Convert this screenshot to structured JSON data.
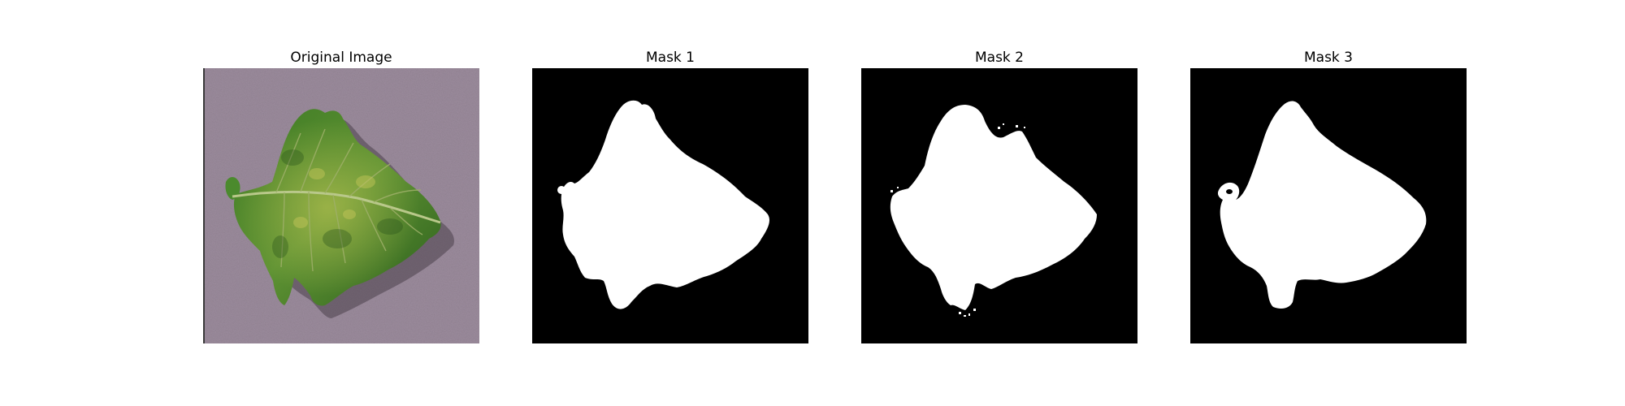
{
  "figure": {
    "panels": [
      {
        "title": "Original Image",
        "kind": "photo"
      },
      {
        "title": "Mask 1",
        "kind": "mask"
      },
      {
        "title": "Mask 2",
        "kind": "mask"
      },
      {
        "title": "Mask 3",
        "kind": "mask"
      }
    ],
    "colors": {
      "background": "#ffffff",
      "mask_background": "#000000",
      "mask_foreground": "#ffffff",
      "photo_background": "#9a8a9a",
      "leaf_dark": "#2f6a1e",
      "leaf_light": "#6f9e3a",
      "leaf_yellow": "#a9b84a"
    }
  }
}
